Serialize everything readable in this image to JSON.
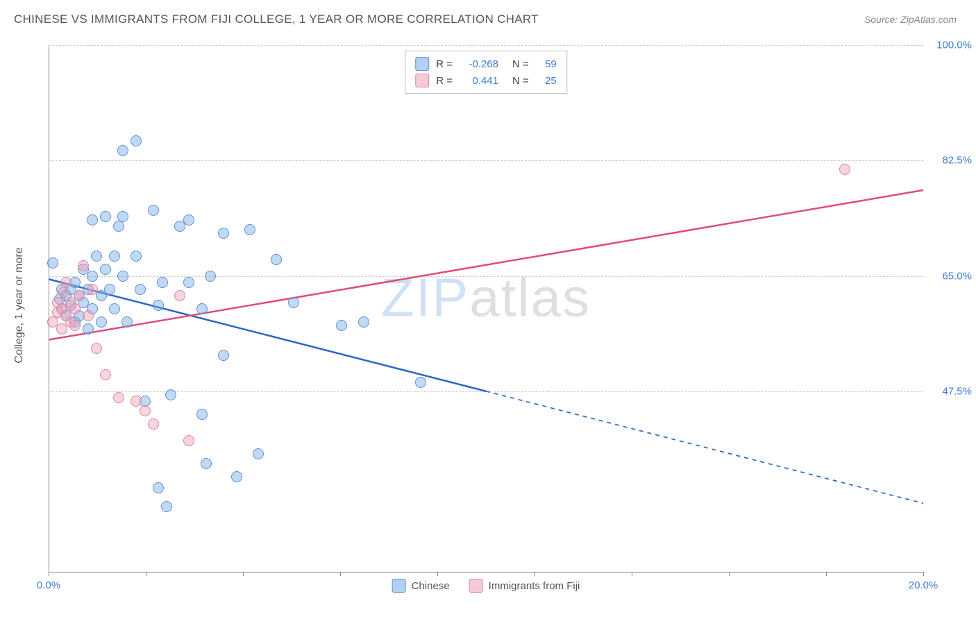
{
  "title": "CHINESE VS IMMIGRANTS FROM FIJI COLLEGE, 1 YEAR OR MORE CORRELATION CHART",
  "source": "Source: ZipAtlas.com",
  "y_axis_title": "College, 1 year or more",
  "watermark_a": "ZIP",
  "watermark_b": "atlas",
  "chart": {
    "type": "scatter",
    "xlim": [
      0,
      20
    ],
    "ylim": [
      20,
      100
    ],
    "x_ticks": [
      0,
      2.22,
      4.44,
      6.67,
      8.89,
      11.11,
      13.33,
      15.56,
      17.78,
      20
    ],
    "x_tick_labels": {
      "0": "0.0%",
      "20": "20.0%"
    },
    "y_ticks": [
      47.5,
      65.0,
      82.5,
      100.0
    ],
    "y_tick_labels": [
      "47.5%",
      "65.0%",
      "82.5%",
      "100.0%"
    ],
    "grid_color": "#cccccc",
    "background_color": "#ffffff",
    "title_color": "#555555",
    "title_fontsize": 17,
    "axis_value_color": "#3b7dd8",
    "label_fontsize": 15,
    "point_radius": 8,
    "series": [
      {
        "name": "Chinese",
        "label": "Chinese",
        "color_fill": "rgba(120,170,230,0.45)",
        "color_stroke": "#5a93d6",
        "r_value": "-0.268",
        "n_value": "59",
        "trend": {
          "x1": 0,
          "y1": 64.5,
          "x2": 20,
          "y2": 30.5,
          "solid_until_x": 10.0,
          "stroke": "#2d66c4",
          "width": 2.5
        },
        "points": [
          [
            0.1,
            67
          ],
          [
            0.3,
            63
          ],
          [
            0.3,
            60
          ],
          [
            0.25,
            61.5
          ],
          [
            0.4,
            59
          ],
          [
            0.4,
            62
          ],
          [
            0.5,
            60.5
          ],
          [
            0.5,
            63
          ],
          [
            0.6,
            58
          ],
          [
            0.6,
            64
          ],
          [
            0.7,
            62
          ],
          [
            0.7,
            59
          ],
          [
            0.8,
            66
          ],
          [
            0.8,
            61
          ],
          [
            0.9,
            57
          ],
          [
            0.9,
            63
          ],
          [
            1.0,
            65
          ],
          [
            1.0,
            60
          ],
          [
            1.1,
            68
          ],
          [
            1.0,
            73.5
          ],
          [
            1.2,
            62
          ],
          [
            1.2,
            58
          ],
          [
            1.3,
            74
          ],
          [
            1.3,
            66
          ],
          [
            1.4,
            63
          ],
          [
            1.5,
            68
          ],
          [
            1.5,
            60
          ],
          [
            1.6,
            72.5
          ],
          [
            1.7,
            74
          ],
          [
            1.7,
            65
          ],
          [
            1.7,
            84
          ],
          [
            1.8,
            58
          ],
          [
            2.0,
            85.5
          ],
          [
            2.0,
            68
          ],
          [
            2.1,
            63
          ],
          [
            2.2,
            46
          ],
          [
            2.4,
            75
          ],
          [
            2.5,
            60.5
          ],
          [
            2.6,
            64
          ],
          [
            2.7,
            30
          ],
          [
            2.8,
            47
          ],
          [
            3.0,
            72.5
          ],
          [
            3.2,
            73.5
          ],
          [
            3.2,
            64
          ],
          [
            3.5,
            60
          ],
          [
            3.5,
            44
          ],
          [
            3.6,
            36.5
          ],
          [
            3.7,
            65
          ],
          [
            4.0,
            71.5
          ],
          [
            4.0,
            53
          ],
          [
            4.3,
            34.5
          ],
          [
            4.6,
            72
          ],
          [
            4.8,
            38
          ],
          [
            5.2,
            67.5
          ],
          [
            5.6,
            61
          ],
          [
            6.7,
            57.5
          ],
          [
            7.2,
            58
          ],
          [
            8.5,
            48.8
          ],
          [
            2.5,
            32.8
          ]
        ]
      },
      {
        "name": "Immigrants from Fiji",
        "label": "Immigrants from Fiji",
        "color_fill": "rgba(240,160,180,0.45)",
        "color_stroke": "#e085a0",
        "r_value": "0.441",
        "n_value": "25",
        "trend": {
          "x1": 0,
          "y1": 55.3,
          "x2": 20,
          "y2": 78.0,
          "solid_until_x": 20,
          "stroke": "#e04a7a",
          "width": 2.5
        },
        "points": [
          [
            0.1,
            58
          ],
          [
            0.2,
            59.5
          ],
          [
            0.2,
            61
          ],
          [
            0.3,
            57
          ],
          [
            0.3,
            60
          ],
          [
            0.35,
            62.5
          ],
          [
            0.4,
            59
          ],
          [
            0.4,
            64
          ],
          [
            0.5,
            58
          ],
          [
            0.5,
            61
          ],
          [
            0.6,
            57.5
          ],
          [
            0.6,
            60
          ],
          [
            0.7,
            62
          ],
          [
            0.8,
            66.5
          ],
          [
            0.9,
            59
          ],
          [
            1.0,
            63
          ],
          [
            1.1,
            54
          ],
          [
            1.3,
            50
          ],
          [
            1.6,
            46.5
          ],
          [
            2.0,
            46
          ],
          [
            2.2,
            44.5
          ],
          [
            2.4,
            42.5
          ],
          [
            3.2,
            40
          ],
          [
            3.0,
            62
          ],
          [
            18.2,
            81.2
          ]
        ]
      }
    ]
  },
  "legend_top": {
    "r_label": "R =",
    "n_label": "N ="
  },
  "legend_bottom": [
    "Chinese",
    "Immigrants from Fiji"
  ]
}
